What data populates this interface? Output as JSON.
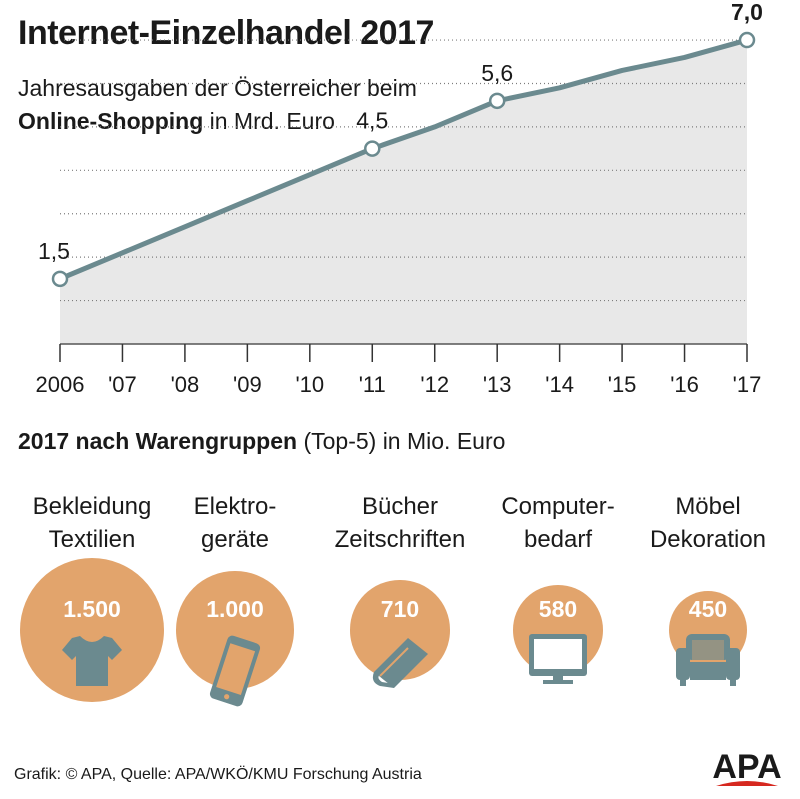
{
  "title": "Internet-Einzelhandel 2017",
  "subtitle": {
    "line1": "Jahresausgaben der Österreicher beim",
    "line2_bold": "Online-Shopping",
    "line2_rest": " in Mrd. Euro"
  },
  "colors": {
    "line": "#6b8a8f",
    "area": "#e8e8e8",
    "grid": "#7d7d7d",
    "bubble": "#e2a46c",
    "icon": "#6b8a8f",
    "logo_text": "#1a1a1a",
    "logo_accent": "#d6281f"
  },
  "chart_data": [
    {
      "type": "area",
      "x": [
        "2006",
        "'07",
        "'08",
        "'09",
        "'10",
        "'11",
        "'12",
        "'13",
        "'14",
        "'15",
        "'16",
        "'17"
      ],
      "values": [
        1.5,
        2.1,
        2.7,
        3.3,
        3.9,
        4.5,
        5.0,
        5.6,
        5.9,
        6.3,
        6.6,
        7.0
      ],
      "data_labels": {
        "0": "1,5",
        "5": "4,5",
        "7": "5,6",
        "11": "7,0"
      },
      "highlight_bold": [
        11
      ],
      "markers": [
        0,
        5,
        7,
        11
      ],
      "ylim": [
        0,
        7.6
      ],
      "grid": true
    },
    {
      "type": "bubble",
      "title_bold": "2017 nach Warengruppen",
      "title_rest": " (Top-5) in Mio. Euro",
      "categories": [
        "Bekleidung\nTextilien",
        "Elektro-\ngeräte",
        "Bücher\nZeitschriften",
        "Computer-\nbedarf",
        "Möbel\nDekoration"
      ],
      "values": [
        1500,
        1000,
        710,
        580,
        450
      ],
      "value_labels": [
        "1.500",
        "1.000",
        "710",
        "580",
        "450"
      ],
      "icons": [
        "tshirt-icon",
        "smartphone-icon",
        "book-icon",
        "monitor-icon",
        "armchair-icon"
      ]
    }
  ],
  "footer": "Grafik: © APA, Quelle: APA/WKÖ/KMU Forschung Austria",
  "logo": "APA"
}
